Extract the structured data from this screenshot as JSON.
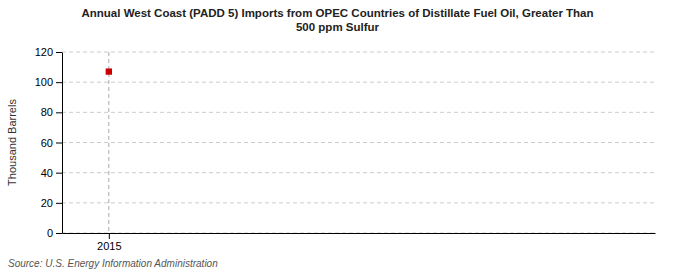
{
  "chart_data": {
    "type": "scatter",
    "title": "Annual West Coast (PADD 5) Imports from OPEC Countries of Distillate Fuel Oil, Greater Than\n500 ppm Sulfur",
    "ylabel": "Thousand Barrels",
    "source": "Source: U.S. Energy Information Administration",
    "x": [
      2015
    ],
    "values": [
      107
    ],
    "color": "#cc0000",
    "marker": "square",
    "xlim": [
      2014.4,
      2022
    ],
    "xticks": [
      2015
    ],
    "ylim": [
      0,
      120
    ],
    "yticks": [
      0,
      20,
      40,
      60,
      80,
      100,
      120
    ],
    "grid": "y",
    "vlines": [
      2015
    ]
  }
}
